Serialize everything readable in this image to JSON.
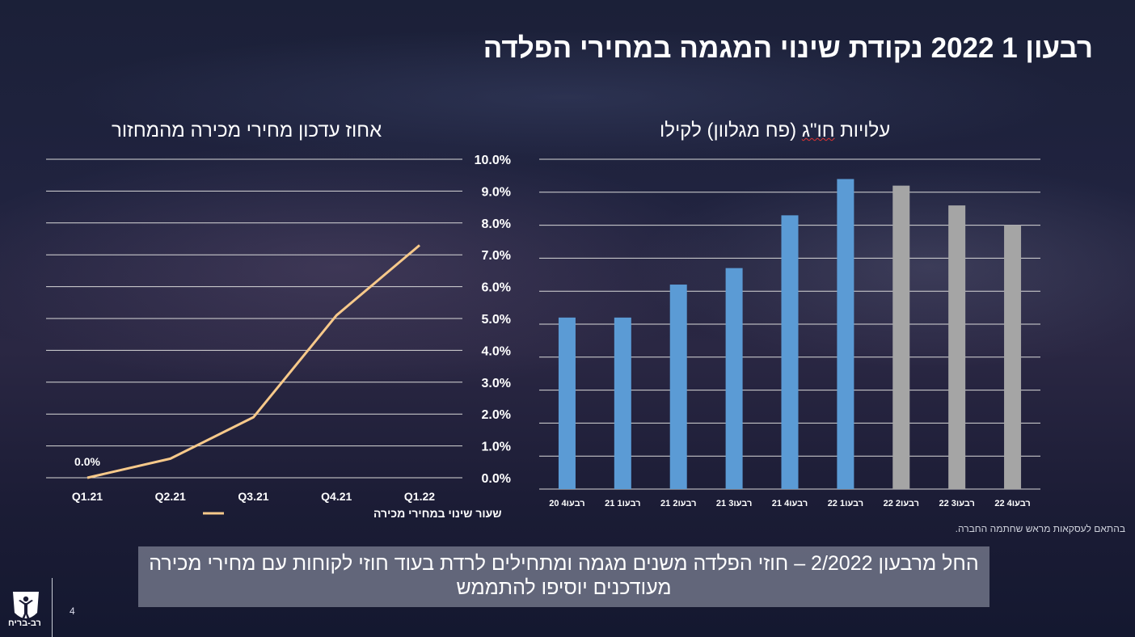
{
  "page": {
    "title": "רבעון 1 2022 נקודת שינוי המגמה במחירי הפלדה",
    "source_note": "בהתאם לעסקאות מראש שחתמה החברה.",
    "callout": "החל מרבעון 2/2022 – חוזי הפלדה משנים מגמה ומתחילים לרדת בעוד חוזי לקוחות עם מחירי מכירה מעודכנים יוסיפו להתממש",
    "page_number": "4",
    "logo_text": "רב-בריח"
  },
  "chart_data": [
    {
      "type": "line",
      "title": "אחוז עדכון מחירי מכירה מהמחזור",
      "categories": [
        "Q1.21",
        "Q2.21",
        "Q3.21",
        "Q4.21",
        "Q1.22"
      ],
      "series": [
        {
          "name": "שעור שינוי במחירי מכירה",
          "values": [
            0.0,
            0.6,
            1.9,
            5.1,
            7.3
          ],
          "color": "#f7c98a"
        }
      ],
      "data_labels": [
        {
          "index": 0,
          "text": "0.0%"
        }
      ],
      "ylim": [
        0,
        10
      ],
      "gridlines": 11,
      "grid": true,
      "legend": "bottom"
    },
    {
      "type": "bar",
      "title_parts": [
        "עלויות ",
        "חו\"ג",
        " (פח מגלוון) לקילו"
      ],
      "categories": [
        "רבעו4 20",
        "רבעו1 21",
        "רבעו2 21",
        "רבעו3 21",
        "רבעו4 21",
        "רבעו1 22",
        "רבעו2 22",
        "רבעו3 22",
        "רבעו4 22"
      ],
      "values": [
        5.2,
        5.2,
        6.2,
        6.7,
        8.3,
        9.4,
        9.2,
        8.6,
        8.0
      ],
      "colors": [
        "#5b9bd5",
        "#5b9bd5",
        "#5b9bd5",
        "#5b9bd5",
        "#5b9bd5",
        "#5b9bd5",
        "#a5a5a5",
        "#a5a5a5",
        "#a5a5a5"
      ],
      "yticks": [
        "0.0%",
        "1.0%",
        "2.0%",
        "3.0%",
        "4.0%",
        "5.0%",
        "6.0%",
        "7.0%",
        "8.0%",
        "9.0%",
        "10.0%"
      ],
      "ylim": [
        0,
        10
      ],
      "grid": true
    }
  ]
}
